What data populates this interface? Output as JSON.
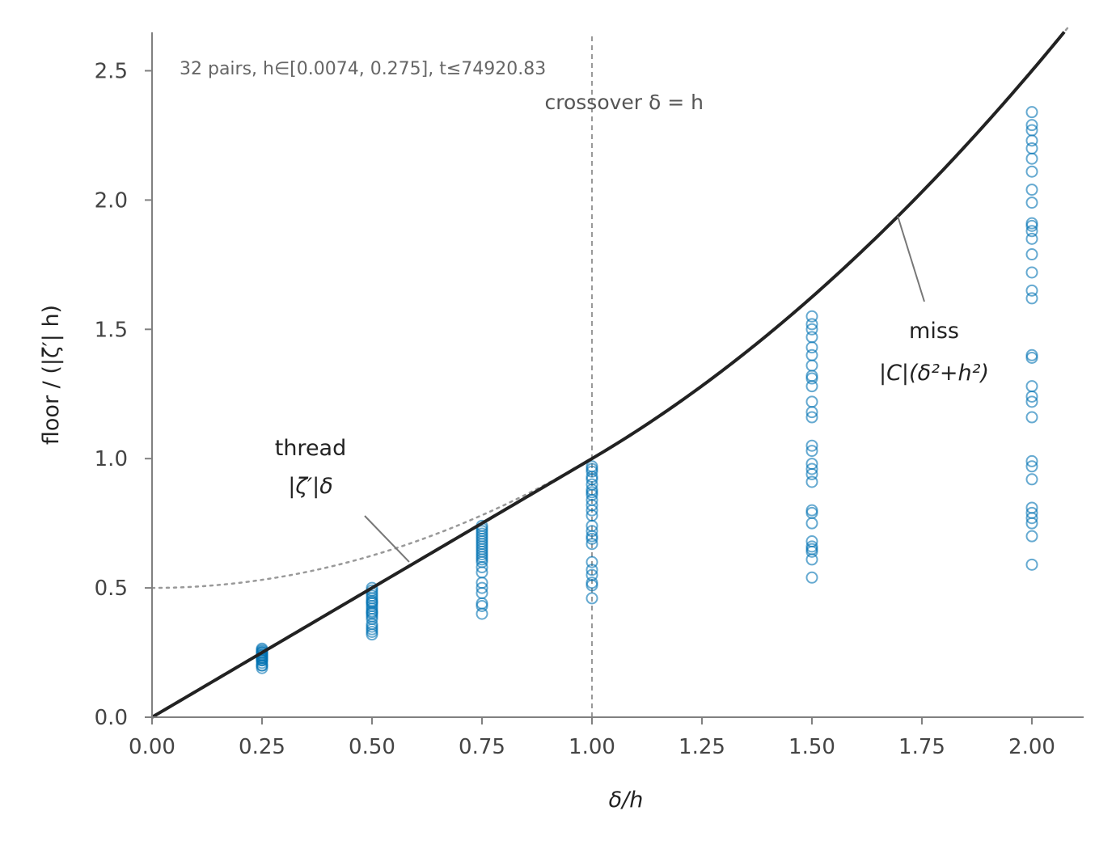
{
  "chart_data": {
    "type": "scatter",
    "title": "",
    "xlabel": "δ/h",
    "ylabel": "floor / (|ζ′| h)",
    "xlim": [
      0.0,
      2.12
    ],
    "ylim": [
      0.0,
      2.65
    ],
    "xticks": [
      0.0,
      0.25,
      0.5,
      0.75,
      1.0,
      1.25,
      1.5,
      1.75,
      2.0
    ],
    "xtick_labels": [
      "0.00",
      "0.25",
      "0.50",
      "0.75",
      "1.00",
      "1.25",
      "1.50",
      "1.75",
      "2.00"
    ],
    "yticks": [
      0.0,
      0.5,
      1.0,
      1.5,
      2.0,
      2.5
    ],
    "ytick_labels": [
      "0.0",
      "0.5",
      "1.0",
      "1.5",
      "2.0",
      "2.5"
    ],
    "grid": false,
    "note": "32 pairs, h∈[0.0074, 0.275], t≤74920.83",
    "crossover": {
      "x": 1.0,
      "label": "crossover  δ = h"
    },
    "curves": [
      {
        "name": "floor",
        "style": "solid",
        "color": "#222222",
        "formula": "x for x<=1, (x^2+1)/2 for x>1"
      },
      {
        "name": "miss |C|(δ²+h²)",
        "style": "dotted",
        "color": "#999999",
        "formula": "(x^2+1)/2"
      }
    ],
    "annotations": [
      {
        "line1": "thread",
        "line2": "|ζ′|δ",
        "target": [
          0.59,
          0.61
        ]
      },
      {
        "line1": "miss",
        "line2": "|C|(δ²+h²)",
        "target": [
          1.73,
          1.95
        ]
      }
    ],
    "point_color": "#0072b2",
    "series": [
      {
        "x": 0.25,
        "values": [
          0.19,
          0.2,
          0.21,
          0.22,
          0.225,
          0.23,
          0.235,
          0.24,
          0.245,
          0.25,
          0.255,
          0.26,
          0.265,
          0.2,
          0.22,
          0.24,
          0.25,
          0.23
        ]
      },
      {
        "x": 0.5,
        "values": [
          0.32,
          0.33,
          0.34,
          0.35,
          0.38,
          0.39,
          0.4,
          0.41,
          0.42,
          0.43,
          0.44,
          0.45,
          0.46,
          0.47,
          0.48,
          0.49,
          0.5,
          0.36,
          0.405,
          0.445
        ]
      },
      {
        "x": 0.75,
        "values": [
          0.4,
          0.43,
          0.44,
          0.48,
          0.5,
          0.52,
          0.56,
          0.58,
          0.6,
          0.61,
          0.62,
          0.63,
          0.64,
          0.65,
          0.66,
          0.67,
          0.68,
          0.69,
          0.7,
          0.71,
          0.72,
          0.73,
          0.74
        ]
      },
      {
        "x": 1.0,
        "values": [
          0.46,
          0.51,
          0.52,
          0.55,
          0.57,
          0.6,
          0.67,
          0.69,
          0.7,
          0.72,
          0.74,
          0.78,
          0.8,
          0.82,
          0.84,
          0.86,
          0.87,
          0.88,
          0.9,
          0.92,
          0.93,
          0.95,
          0.96,
          0.97
        ]
      },
      {
        "x": 1.5,
        "values": [
          0.54,
          0.61,
          0.64,
          0.65,
          0.66,
          0.68,
          0.75,
          0.79,
          0.8,
          0.91,
          0.94,
          0.96,
          0.98,
          1.03,
          1.05,
          1.16,
          1.18,
          1.22,
          1.28,
          1.31,
          1.32,
          1.36,
          1.4,
          1.43,
          1.47,
          1.5,
          1.52,
          1.55
        ]
      },
      {
        "x": 2.0,
        "values": [
          0.59,
          0.7,
          0.75,
          0.77,
          0.79,
          0.81,
          0.92,
          0.97,
          0.99,
          1.16,
          1.22,
          1.24,
          1.28,
          1.39,
          1.4,
          1.62,
          1.65,
          1.72,
          1.79,
          1.85,
          1.88,
          1.9,
          1.91,
          1.99,
          2.04,
          2.11,
          2.16,
          2.2,
          2.23,
          2.27,
          2.29,
          2.34
        ]
      }
    ]
  }
}
